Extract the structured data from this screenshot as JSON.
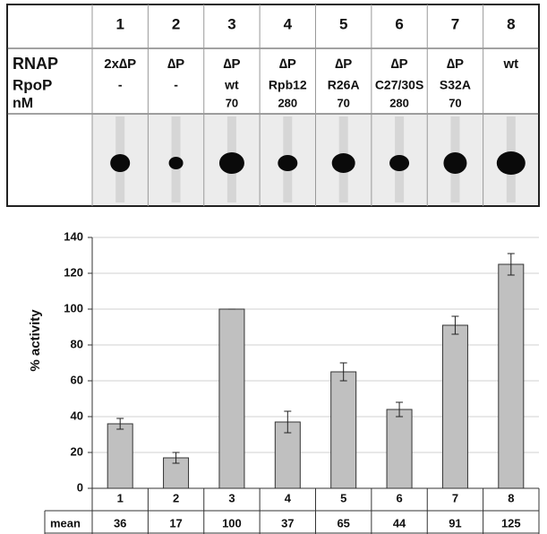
{
  "gel_table": {
    "lanes": [
      "1",
      "2",
      "3",
      "4",
      "5",
      "6",
      "7",
      "8"
    ],
    "rows": [
      {
        "label": "RNAP",
        "cells": [
          "2x∆P",
          "∆P",
          "∆P",
          "∆P",
          "∆P",
          "∆P",
          "∆P",
          "wt"
        ]
      },
      {
        "label": "RpoP",
        "cells": [
          "-",
          "-",
          "wt",
          "Rpb12",
          "R26A",
          "C27/30S",
          "S32A",
          null
        ]
      },
      {
        "label": "nM",
        "cells": [
          null,
          null,
          "70",
          "280",
          "70",
          "280",
          "70",
          null
        ]
      }
    ]
  },
  "chart_data": {
    "type": "bar",
    "y_label": "% activity",
    "categories": [
      "1",
      "2",
      "3",
      "4",
      "5",
      "6",
      "7",
      "8"
    ],
    "values": [
      36,
      17,
      100,
      37,
      65,
      44,
      91,
      125
    ],
    "errors": [
      3,
      3,
      0,
      6,
      5,
      4,
      5,
      6
    ],
    "value_row_label": "mean",
    "color": "#c0c0c0",
    "ylim": [
      0,
      140
    ],
    "yticks": [
      0,
      20,
      40,
      60,
      80,
      100,
      120,
      140
    ],
    "grid": true
  }
}
